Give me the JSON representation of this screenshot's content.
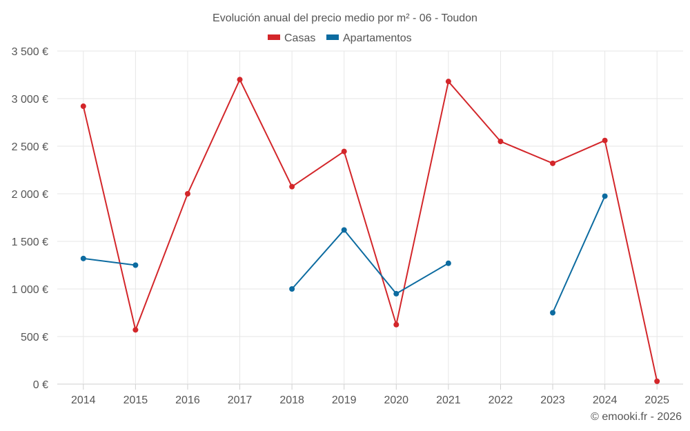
{
  "chart_data": {
    "type": "line",
    "title": "Evolución anual del precio medio por m² - 06 - Toudon",
    "categories": [
      "2014",
      "2015",
      "2016",
      "2017",
      "2018",
      "2019",
      "2020",
      "2021",
      "2022",
      "2023",
      "2024",
      "2025"
    ],
    "series": [
      {
        "name": "Casas",
        "color": "#d3262a",
        "values": [
          2920,
          570,
          2000,
          3200,
          2075,
          2445,
          625,
          3180,
          2550,
          2320,
          2560,
          30
        ]
      },
      {
        "name": "Apartamentos",
        "color": "#0c6ba0",
        "values": [
          1320,
          1250,
          null,
          null,
          1000,
          1620,
          950,
          1270,
          null,
          750,
          1975,
          null
        ]
      }
    ],
    "ylim": [
      0,
      3500
    ],
    "yticks": [
      0,
      500,
      1000,
      1500,
      2000,
      2500,
      3000,
      3500
    ],
    "ytick_labels": [
      "0 €",
      "500 €",
      "1 000 €",
      "1 500 €",
      "2 000 €",
      "2 500 €",
      "3 000 €",
      "3 500 €"
    ],
    "legend_position": "top-center",
    "grid": true,
    "credit": "© emooki.fr - 2026"
  }
}
